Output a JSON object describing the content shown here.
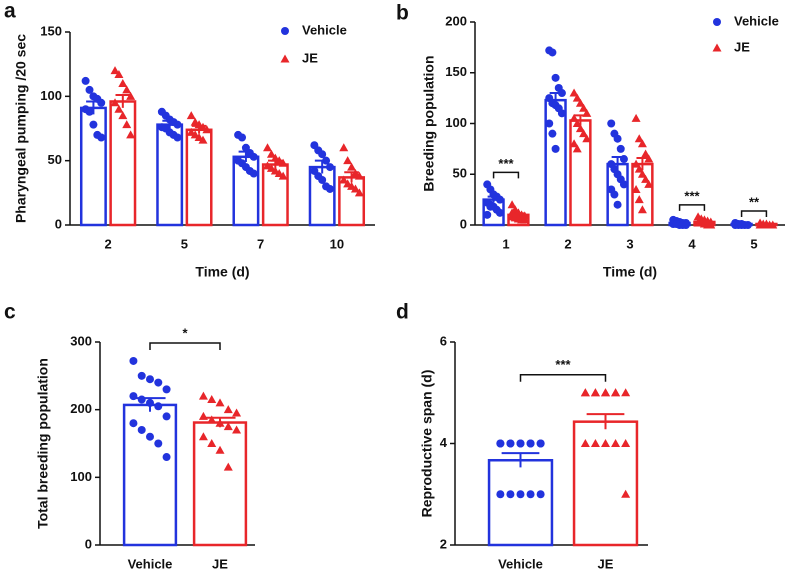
{
  "chart_data": [
    {
      "type": "bar",
      "label": "a",
      "ylabel": "Pharyngeal pumping /20 sec",
      "xlabel": "Time (d)",
      "categories": [
        "2",
        "5",
        "7",
        "10"
      ],
      "ylim": [
        0,
        150
      ],
      "yticks": [
        0,
        50,
        100,
        150
      ],
      "series": [
        {
          "name": "Vehicle",
          "color": "#2233dd",
          "marker": "circle",
          "values": [
            91,
            78,
            53,
            45
          ],
          "errors": [
            5,
            3,
            4,
            5
          ],
          "points": [
            [
              112,
              105,
              100,
              98,
              95,
              90,
              88,
              78,
              70,
              68
            ],
            [
              88,
              85,
              82,
              80,
              78,
              76,
              75,
              72,
              70,
              68
            ],
            [
              70,
              68,
              60,
              56,
              53,
              50,
              48,
              45,
              42,
              40
            ],
            [
              62,
              58,
              55,
              50,
              45,
              42,
              38,
              35,
              30,
              28
            ]
          ]
        },
        {
          "name": "JE",
          "color": "#e8262a",
          "marker": "triangle",
          "values": [
            96,
            74,
            47,
            37
          ],
          "errors": [
            5,
            3,
            3,
            4
          ],
          "points": [
            [
              120,
              117,
              110,
              105,
              100,
              95,
              90,
              85,
              78,
              70
            ],
            [
              85,
              80,
              78,
              76,
              74,
              72,
              70,
              68,
              66
            ],
            [
              60,
              55,
              52,
              50,
              48,
              46,
              44,
              42,
              40,
              38
            ],
            [
              60,
              50,
              45,
              40,
              38,
              35,
              32,
              30,
              28,
              25
            ]
          ]
        }
      ]
    },
    {
      "type": "bar",
      "label": "b",
      "ylabel": "Breeding population",
      "xlabel": "Time (d)",
      "categories": [
        "1",
        "2",
        "3",
        "4",
        "5"
      ],
      "ylim": [
        0,
        200
      ],
      "yticks": [
        0,
        50,
        100,
        150,
        200
      ],
      "series": [
        {
          "name": "Vehicle",
          "color": "#2233dd",
          "marker": "circle",
          "values": [
            25,
            123,
            60,
            2,
            1
          ],
          "errors": [
            3,
            7,
            7,
            0.5,
            0.3
          ],
          "points": [
            [
              40,
              35,
              30,
              28,
              25,
              22,
              20,
              18,
              15,
              12,
              10,
              18,
              30
            ],
            [
              172,
              170,
              145,
              135,
              130,
              125,
              120,
              118,
              115,
              110,
              100,
              90,
              75
            ],
            [
              100,
              90,
              85,
              75,
              65,
              60,
              55,
              50,
              45,
              40,
              35,
              30,
              20
            ],
            [
              5,
              4,
              3,
              2,
              2,
              1,
              1,
              0,
              0,
              0
            ],
            [
              2,
              1,
              1,
              0,
              0,
              0,
              0,
              0
            ]
          ]
        },
        {
          "name": "JE",
          "color": "#e8262a",
          "marker": "triangle",
          "values": [
            10,
            103,
            60,
            3,
            1
          ],
          "errors": [
            1.5,
            5,
            6,
            0.6,
            0.3
          ],
          "points": [
            [
              20,
              15,
              12,
              10,
              9,
              8,
              7,
              6,
              5,
              5,
              12,
              8,
              6
            ],
            [
              130,
              125,
              120,
              115,
              110,
              105,
              100,
              95,
              90,
              85,
              80,
              75
            ],
            [
              105,
              85,
              80,
              70,
              65,
              60,
              55,
              50,
              45,
              40,
              35,
              25,
              15
            ],
            [
              8,
              6,
              5,
              4,
              3,
              2,
              2,
              1,
              0,
              0
            ],
            [
              2,
              1,
              1,
              0,
              0,
              0,
              0,
              0
            ]
          ]
        }
      ],
      "annotations": [
        {
          "category": "1",
          "text": "***"
        },
        {
          "category": "4",
          "text": "***"
        },
        {
          "category": "5",
          "text": "**"
        }
      ]
    },
    {
      "type": "bar",
      "label": "c",
      "ylabel": "Total breeding population",
      "categories": [
        "Vehicle",
        "JE"
      ],
      "ylim": [
        0,
        300
      ],
      "yticks": [
        0,
        100,
        200,
        300
      ],
      "colors": [
        "#2233dd",
        "#e8262a"
      ],
      "markers": [
        "circle",
        "triangle"
      ],
      "values": [
        207,
        181
      ],
      "errors": [
        10,
        7
      ],
      "points": [
        [
          272,
          250,
          245,
          240,
          230,
          220,
          215,
          210,
          205,
          190,
          180,
          170,
          160,
          150,
          130
        ],
        [
          220,
          215,
          210,
          200,
          195,
          190,
          185,
          180,
          175,
          170,
          160,
          150,
          140,
          115
        ]
      ],
      "significance": "*"
    },
    {
      "type": "bar",
      "label": "d",
      "ylabel": "Reproductive span (d)",
      "categories": [
        "Vehicle",
        "JE"
      ],
      "ylim": [
        2,
        6
      ],
      "yticks": [
        2,
        4,
        6
      ],
      "colors": [
        "#2233dd",
        "#e8262a"
      ],
      "markers": [
        "circle",
        "triangle"
      ],
      "values": [
        3.67,
        4.43
      ],
      "errors": [
        0.14,
        0.15
      ],
      "points": [
        [
          4,
          4,
          4,
          4,
          4,
          4,
          4,
          4,
          4,
          4,
          3,
          3,
          3,
          3,
          3
        ],
        [
          5,
          5,
          5,
          5,
          5,
          5,
          5,
          5,
          5,
          4,
          4,
          4,
          4,
          4,
          3
        ]
      ],
      "significance": "***"
    }
  ]
}
